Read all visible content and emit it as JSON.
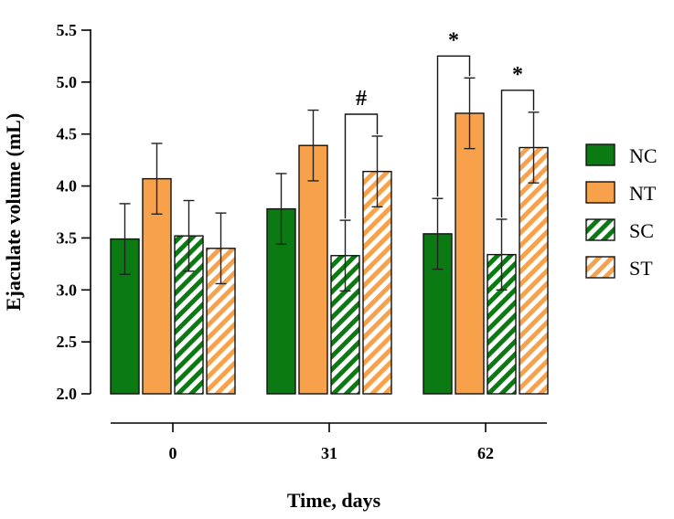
{
  "chart_data": {
    "type": "bar",
    "title": "",
    "xlabel": "Time, days",
    "ylabel": "Ejaculate volume (mL)",
    "ylim": [
      2.0,
      5.5
    ],
    "yticks": [
      "2.0",
      "2.5",
      "3.0",
      "3.5",
      "4.0",
      "4.5",
      "5.0",
      "5.5"
    ],
    "categories": [
      "0",
      "31",
      "62"
    ],
    "grid": false,
    "legend_position": "right",
    "series": [
      {
        "name": "NC",
        "color": "#0b7a12",
        "pattern": "solid",
        "values": [
          3.49,
          3.78,
          3.54
        ],
        "errors": [
          0.34,
          0.34,
          0.34
        ]
      },
      {
        "name": "NT",
        "color": "#f7a24b",
        "pattern": "solid",
        "values": [
          4.07,
          4.39,
          4.7
        ],
        "errors": [
          0.34,
          0.34,
          0.34
        ]
      },
      {
        "name": "SC",
        "color": "#0b7a12",
        "pattern": "striped",
        "values": [
          3.52,
          3.33,
          3.34
        ],
        "errors": [
          0.34,
          0.34,
          0.34
        ]
      },
      {
        "name": "ST",
        "color": "#f7a24b",
        "pattern": "striped",
        "values": [
          3.4,
          4.14,
          4.37
        ],
        "errors": [
          0.34,
          0.34,
          0.34
        ]
      }
    ],
    "annotations": [
      {
        "label": "#",
        "category": "31",
        "from": "SC",
        "to": "ST"
      },
      {
        "label": "*",
        "category": "62",
        "from": "NC",
        "to": "NT"
      },
      {
        "label": "*",
        "category": "62",
        "from": "SC",
        "to": "ST"
      }
    ]
  }
}
